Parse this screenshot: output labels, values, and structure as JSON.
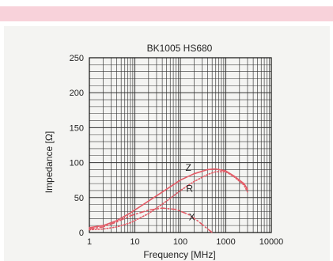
{
  "colors": {
    "top_band": "#f8d2da",
    "panel_background": "#f4f4f2",
    "curve": "#e35b66",
    "grid": "#333333"
  },
  "chart_data": {
    "type": "line",
    "title": "BK1005 HS680",
    "xlabel": "Frequency [MHz]",
    "ylabel": "Impedance [Ω]",
    "x_scale": "log",
    "xlim": [
      1,
      10000
    ],
    "ylim": [
      0,
      250
    ],
    "grid": true,
    "x_ticks": [
      1,
      10,
      100,
      1000,
      10000
    ],
    "x_tick_labels": [
      "1",
      "10",
      "100",
      "1000",
      "10000"
    ],
    "y_ticks": [
      0,
      50,
      100,
      150,
      200,
      250
    ],
    "y_tick_labels": [
      "0",
      "50",
      "100",
      "150",
      "200",
      "250"
    ],
    "series": [
      {
        "name": "Z",
        "style": "solid",
        "color": "#e35b66",
        "points": [
          [
            1,
            7
          ],
          [
            2,
            10
          ],
          [
            4,
            17
          ],
          [
            8,
            28
          ],
          [
            20,
            45
          ],
          [
            50,
            62
          ],
          [
            100,
            75
          ],
          [
            200,
            84
          ],
          [
            400,
            90
          ],
          [
            600,
            91
          ],
          [
            1000,
            88
          ],
          [
            1500,
            81
          ],
          [
            2500,
            70
          ],
          [
            3000,
            62
          ]
        ]
      },
      {
        "name": "R",
        "style": "dotted",
        "color": "#e35b66",
        "points": [
          [
            1,
            4
          ],
          [
            2,
            5
          ],
          [
            4,
            8
          ],
          [
            8,
            14
          ],
          [
            20,
            27
          ],
          [
            50,
            45
          ],
          [
            100,
            60
          ],
          [
            200,
            73
          ],
          [
            400,
            83
          ],
          [
            600,
            87
          ],
          [
            1000,
            87
          ],
          [
            1500,
            80
          ],
          [
            2500,
            68
          ],
          [
            3000,
            58
          ]
        ]
      },
      {
        "name": "X",
        "style": "dashdot",
        "color": "#e35b66",
        "points": [
          [
            1,
            5
          ],
          [
            2,
            8
          ],
          [
            4,
            15
          ],
          [
            8,
            24
          ],
          [
            20,
            32
          ],
          [
            40,
            35
          ],
          [
            80,
            33
          ],
          [
            150,
            26
          ],
          [
            250,
            16
          ],
          [
            350,
            8
          ],
          [
            500,
            0
          ]
        ]
      }
    ],
    "annotations": [
      {
        "text": "Z",
        "x": 150,
        "y": 93
      },
      {
        "text": "R",
        "x": 160,
        "y": 63
      },
      {
        "text": "X",
        "x": 180,
        "y": 22
      }
    ]
  }
}
